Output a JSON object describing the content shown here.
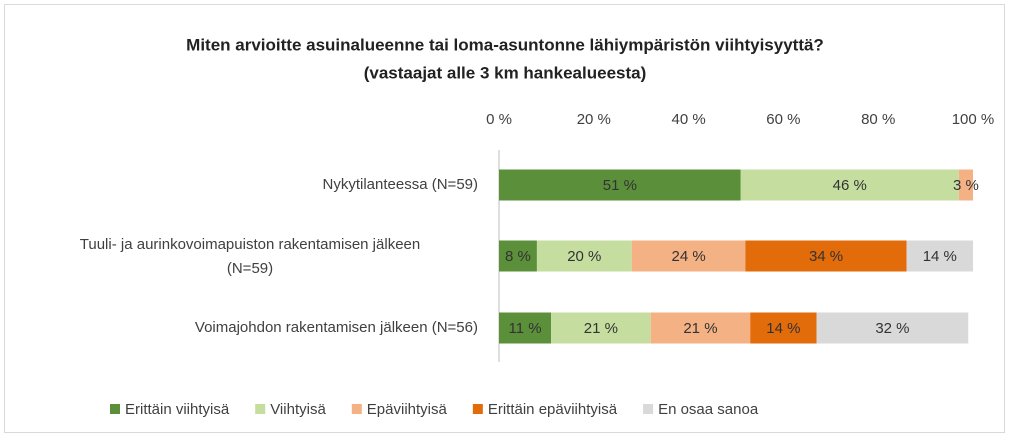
{
  "chart_data": {
    "type": "stacked-barh",
    "title": "Miten arvioitte asuinalueenne tai loma-asuntonne lähiympäristön viihtyisyyttä?",
    "subtitle": "(vastaajat alle 3 km hankealueesta)",
    "categories": [
      "Nykytilanteessa (N=59)",
      "Tuuli- ja aurinkovoimapuiston rakentamisen jälkeen (N=59)",
      "Voimajohdon rakentamisen jälkeen (N=56)"
    ],
    "series": [
      {
        "name": "Erittäin viihtyisä",
        "color": "#5b8f3a",
        "values": [
          51,
          8,
          11
        ],
        "value_labels": [
          "51 %",
          "8 %",
          "11 %"
        ]
      },
      {
        "name": "Viihtyisä",
        "color": "#c5dea0",
        "values": [
          46,
          20,
          21
        ],
        "value_labels": [
          "46 %",
          "20 %",
          "21 %"
        ]
      },
      {
        "name": "Epäviihtyisä",
        "color": "#f4b183",
        "values": [
          3,
          24,
          21
        ],
        "value_labels": [
          "3 %",
          "24 %",
          "21 %"
        ]
      },
      {
        "name": "Erittäin epäviihtyisä",
        "color": "#e26b0a",
        "values": [
          null,
          34,
          14
        ],
        "value_labels": [
          null,
          "34 %",
          "14 %"
        ]
      },
      {
        "name": "En osaa sanoa",
        "color": "#d9d9d9",
        "values": [
          null,
          14,
          32
        ],
        "value_labels": [
          null,
          "14 %",
          "32 %"
        ]
      }
    ],
    "xlim": [
      0,
      100
    ],
    "xticks": [
      {
        "value": 0,
        "label": "0 %"
      },
      {
        "value": 20,
        "label": "20 %"
      },
      {
        "value": 40,
        "label": "40 %"
      },
      {
        "value": 60,
        "label": "60 %"
      },
      {
        "value": 80,
        "label": "80 %"
      },
      {
        "value": 100,
        "label": "100 %"
      }
    ],
    "legend": "bottom"
  }
}
